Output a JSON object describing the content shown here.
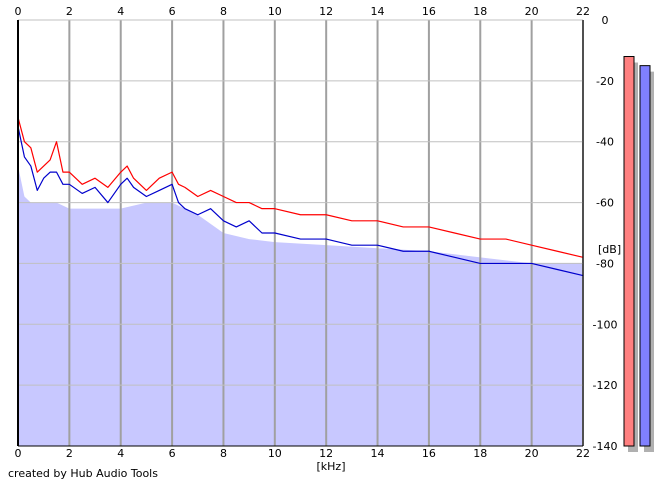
{
  "chart_data": {
    "type": "line",
    "title": "",
    "xlabel": "[kHz]",
    "ylabel": "[dB]",
    "xlim": [
      0,
      22
    ],
    "ylim": [
      -140,
      0
    ],
    "x_ticks": [
      "0",
      "2",
      "4",
      "6",
      "8",
      "10",
      "12",
      "14",
      "16",
      "18",
      "20",
      "22"
    ],
    "y_ticks": [
      "0",
      "-20",
      "-40",
      "-60",
      "-80",
      "-100",
      "-120",
      "-140"
    ],
    "grid": true,
    "series": [
      {
        "color": "#ff0000",
        "x": [
          0,
          0.25,
          0.5,
          0.75,
          1,
          1.25,
          1.5,
          1.75,
          2,
          2.5,
          3,
          3.5,
          4,
          4.25,
          4.5,
          5,
          5.5,
          6,
          6.25,
          6.5,
          7,
          7.5,
          8,
          8.5,
          9,
          9.5,
          10,
          11,
          12,
          13,
          14,
          15,
          16,
          17,
          18,
          19,
          20,
          21,
          22
        ],
        "y": [
          -32,
          -40,
          -42,
          -50,
          -48,
          -46,
          -40,
          -50,
          -50,
          -54,
          -52,
          -55,
          -50,
          -48,
          -52,
          -56,
          -52,
          -50,
          -54,
          -55,
          -58,
          -56,
          -58,
          -60,
          -60,
          -62,
          -62,
          -64,
          -64,
          -66,
          -66,
          -68,
          -68,
          -70,
          -72,
          -72,
          -74,
          -76,
          -78
        ]
      },
      {
        "color": "#0000cc",
        "x": [
          0,
          0.25,
          0.5,
          0.75,
          1,
          1.25,
          1.5,
          1.75,
          2,
          2.5,
          3,
          3.5,
          4,
          4.25,
          4.5,
          5,
          5.5,
          6,
          6.25,
          6.5,
          7,
          7.5,
          8,
          8.5,
          9,
          9.5,
          10,
          11,
          12,
          13,
          14,
          15,
          16,
          17,
          18,
          19,
          20,
          21,
          22
        ],
        "y": [
          -35,
          -45,
          -48,
          -56,
          -52,
          -50,
          -50,
          -54,
          -54,
          -57,
          -55,
          -60,
          -54,
          -52,
          -55,
          -58,
          -56,
          -54,
          -60,
          -62,
          -64,
          -62,
          -66,
          -68,
          -66,
          -70,
          -70,
          -72,
          -72,
          -74,
          -74,
          -76,
          -76,
          -78,
          -80,
          -80,
          -80,
          -82,
          -84
        ]
      }
    ],
    "fill": {
      "color": "#c8c8ff",
      "x": [
        0,
        0.25,
        0.5,
        1,
        1.5,
        2,
        3,
        4,
        5,
        6,
        7,
        8,
        9,
        10,
        12,
        14,
        16,
        18,
        20,
        22
      ],
      "y": [
        -48,
        -58,
        -60,
        -60,
        -60,
        -62,
        -62,
        -62,
        -60,
        -60,
        -64,
        -70,
        -72,
        -73,
        -74,
        -75,
        -76,
        -78,
        -80,
        -80
      ]
    },
    "meters": {
      "channel_colors": [
        "#ff8080",
        "#8080ff"
      ],
      "levels_db": [
        -12,
        -15
      ]
    }
  },
  "footer": {
    "credit": "created by Hub Audio Tools"
  }
}
